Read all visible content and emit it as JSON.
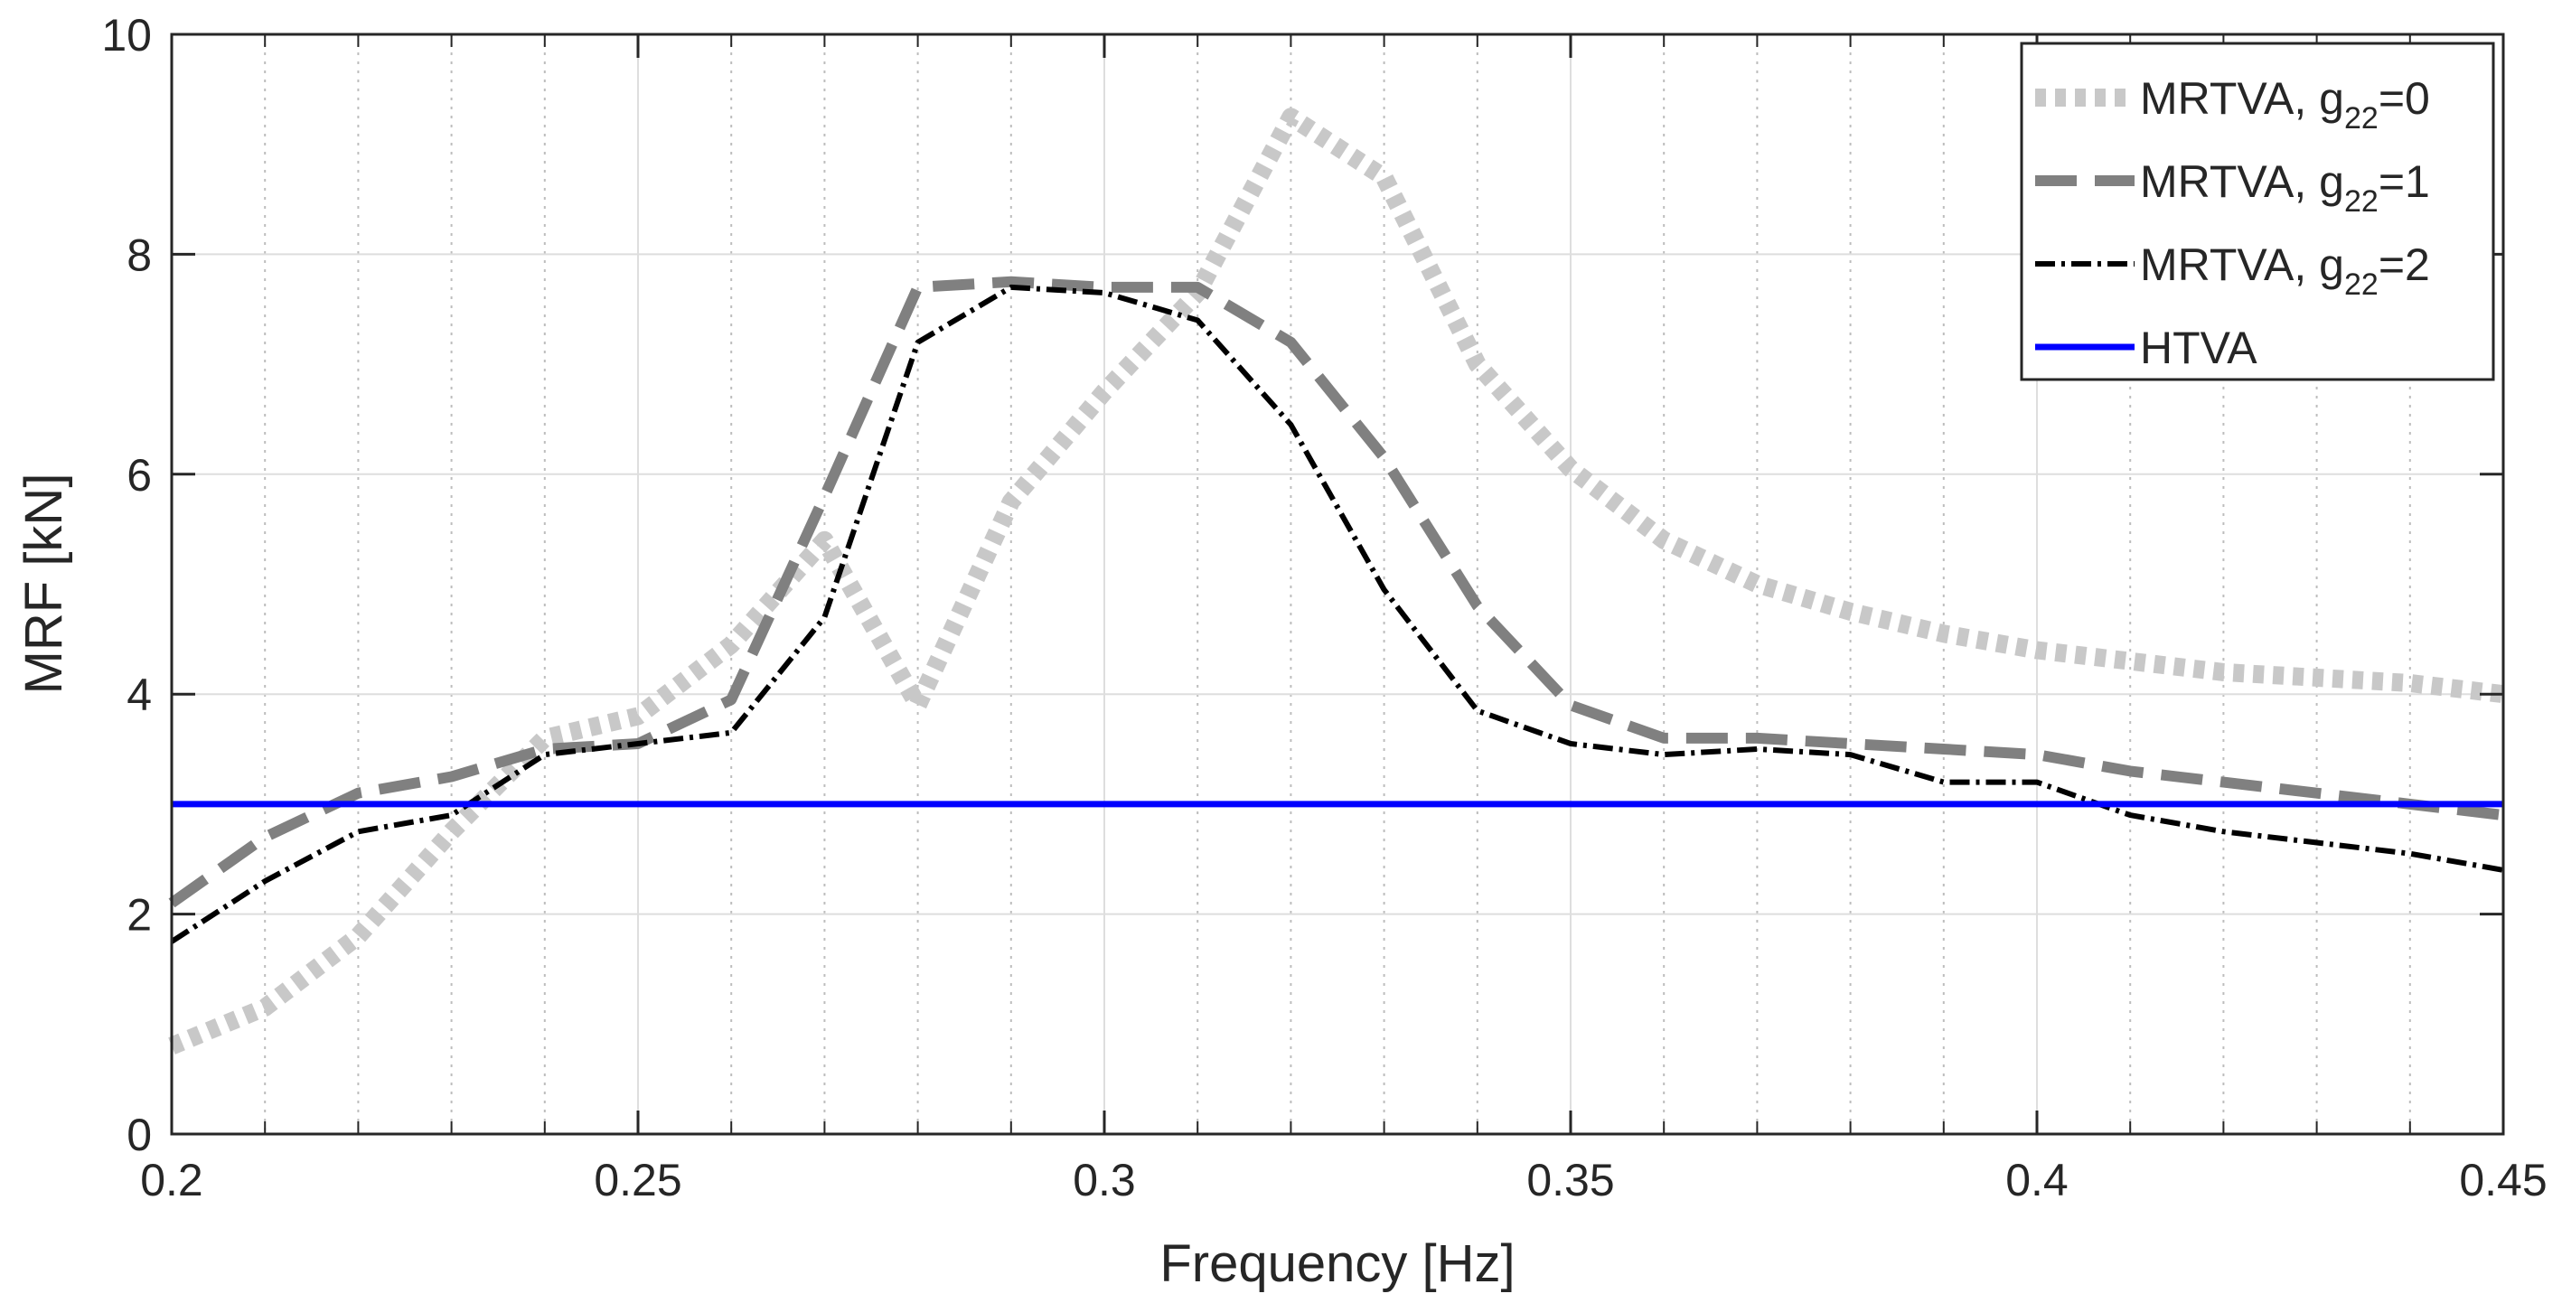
{
  "chart_data": {
    "type": "line",
    "title": "",
    "xlabel": "Frequency [Hz]",
    "ylabel": "MRF [kN]",
    "xlim": [
      0.2,
      0.45
    ],
    "ylim": [
      0,
      10
    ],
    "grid": true,
    "legend_position": "top-right",
    "x_major_ticks": [
      0.2,
      0.25,
      0.3,
      0.35,
      0.4,
      0.45
    ],
    "x_major_tick_labels": [
      "0.2",
      "0.25",
      "0.3",
      "0.35",
      "0.4",
      "0.45"
    ],
    "x_minor_ticks": [
      0.21,
      0.22,
      0.23,
      0.24,
      0.26,
      0.27,
      0.28,
      0.29,
      0.31,
      0.32,
      0.33,
      0.34,
      0.36,
      0.37,
      0.38,
      0.39,
      0.41,
      0.42,
      0.43,
      0.44
    ],
    "y_ticks": [
      0,
      2,
      4,
      6,
      8,
      10
    ],
    "y_tick_labels": [
      "0",
      "2",
      "4",
      "6",
      "8",
      "10"
    ],
    "x": [
      0.2,
      0.21,
      0.22,
      0.23,
      0.24,
      0.25,
      0.26,
      0.27,
      0.28,
      0.29,
      0.3,
      0.31,
      0.32,
      0.33,
      0.34,
      0.35,
      0.36,
      0.37,
      0.38,
      0.39,
      0.4,
      0.41,
      0.42,
      0.43,
      0.44,
      0.45
    ],
    "series": [
      {
        "name": "MRTVA, g22=0",
        "legend_main": "MRTVA, g",
        "legend_sub": "22",
        "legend_tail": "=0",
        "color": "#c8c8c8",
        "style": "dotted",
        "values": [
          0.8,
          1.15,
          1.8,
          2.75,
          3.6,
          3.8,
          4.45,
          5.4,
          3.9,
          5.75,
          6.75,
          7.65,
          9.25,
          8.7,
          7.0,
          6.05,
          5.4,
          5.0,
          4.75,
          4.55,
          4.4,
          4.3,
          4.2,
          4.15,
          4.1,
          4.0
        ]
      },
      {
        "name": "MRTVA, g22=1",
        "legend_main": "MRTVA, g",
        "legend_sub": "22",
        "legend_tail": "=1",
        "color": "#808080",
        "style": "dashed",
        "values": [
          2.1,
          2.7,
          3.1,
          3.25,
          3.5,
          3.55,
          3.95,
          5.8,
          7.7,
          7.75,
          7.7,
          7.7,
          7.2,
          6.15,
          4.8,
          3.9,
          3.6,
          3.6,
          3.55,
          3.5,
          3.45,
          3.3,
          3.2,
          3.1,
          3.0,
          2.9
        ]
      },
      {
        "name": "MRTVA, g22=2",
        "legend_main": "MRTVA, g",
        "legend_sub": "22",
        "legend_tail": "=2",
        "color": "#000000",
        "style": "dashdot",
        "values": [
          1.75,
          2.3,
          2.75,
          2.9,
          3.45,
          3.55,
          3.65,
          4.7,
          7.2,
          7.7,
          7.65,
          7.4,
          6.45,
          4.95,
          3.85,
          3.55,
          3.45,
          3.5,
          3.45,
          3.2,
          3.2,
          2.9,
          2.75,
          2.65,
          2.55,
          2.4
        ]
      },
      {
        "name": "HTVA",
        "legend_main": "HTVA",
        "legend_sub": "",
        "legend_tail": "",
        "color": "#0000ff",
        "style": "solid",
        "values": [
          3.0,
          3.0,
          3.0,
          3.0,
          3.0,
          3.0,
          3.0,
          3.0,
          3.0,
          3.0,
          3.0,
          3.0,
          3.0,
          3.0,
          3.0,
          3.0,
          3.0,
          3.0,
          3.0,
          3.0,
          3.0,
          3.0,
          3.0,
          3.0,
          3.0,
          3.0
        ]
      }
    ]
  }
}
